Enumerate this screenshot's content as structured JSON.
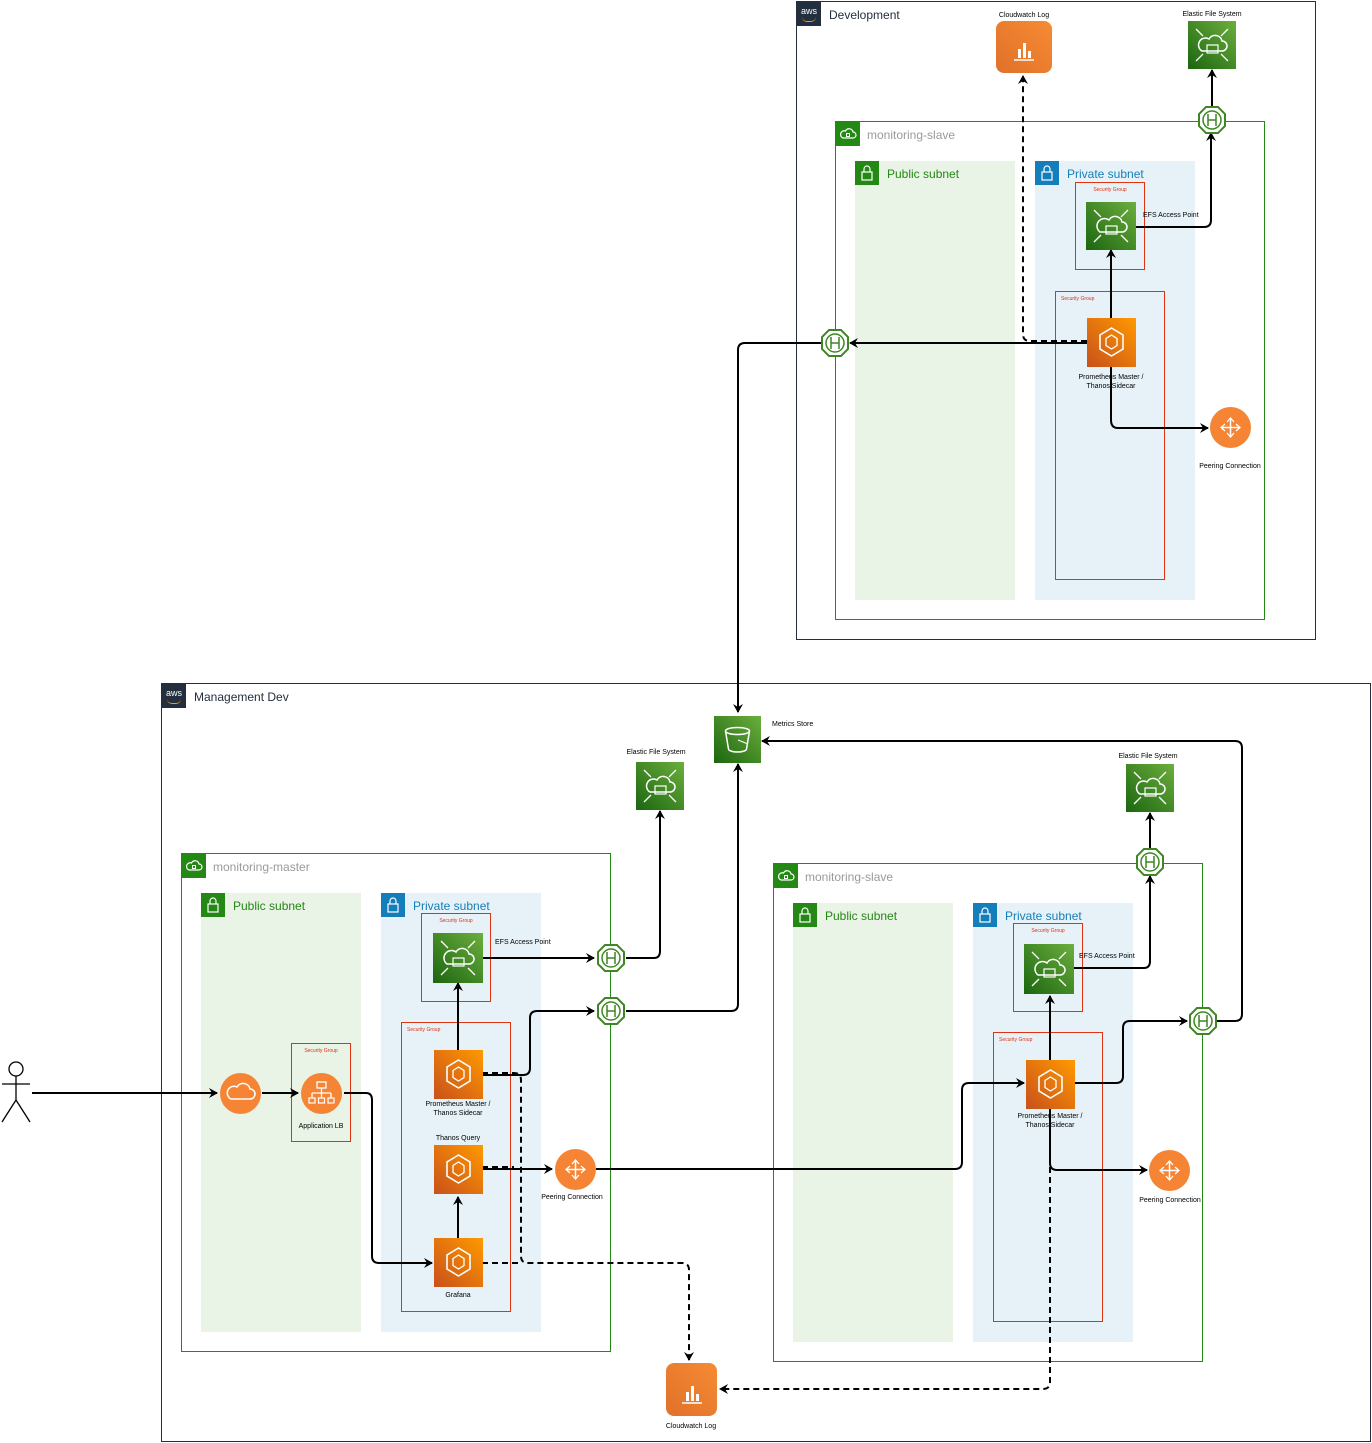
{
  "development": {
    "title": "Development",
    "cloudwatch_label": "Cloudwatch Log",
    "efs_label": "Elastic File System",
    "vpc": {
      "title": "monitoring-slave",
      "public_subnet": "Public subnet",
      "private_subnet": "Private subnet",
      "sg_efs": "Security Group",
      "efs_ap_label": "EFS Access Point",
      "sg_prom": "Security Group",
      "prom_label_1": "Prometheus Master /",
      "prom_label_2": "Thanos Sidecar",
      "peering_label": "Peering Connection"
    }
  },
  "management": {
    "title": "Management Dev",
    "metrics_store_label": "Metrics Store",
    "efs_master_label": "Elastic File System",
    "efs_slave_label": "Elastic File System",
    "cloudwatch_label": "Cloudwatch Log",
    "master_vpc": {
      "title": "monitoring-master",
      "public_subnet": "Public subnet",
      "private_subnet": "Private subnet",
      "sg_alb": "Security Group",
      "alb_label": "Application LB",
      "sg_efs": "Security Group",
      "efs_ap_label": "EFS Access Point",
      "sg_prom": "Security Group",
      "prom_label_1": "Prometheus Master /",
      "prom_label_2": "Thanos Sidecar",
      "thanos_query_label": "Thanos Query",
      "grafana_label": "Grafana",
      "peering_label": "Peering Connection"
    },
    "slave_vpc": {
      "title": "monitoring-slave",
      "public_subnet": "Public subnet",
      "private_subnet": "Private subnet",
      "sg_efs": "Security Group",
      "efs_ap_label": "EFS Access Point",
      "sg_prom": "Security Group",
      "prom_label_1": "Prometheus Master /",
      "prom_label_2": "Thanos Sidecar",
      "peering_label": "Peering Connection"
    }
  },
  "logo_text": "aws",
  "colors": {
    "aws_dark": "#232f3e",
    "vpc_green": "#248814",
    "private_blue": "#147eba",
    "security_red": "#df3312",
    "compute_orange": "#ed7100",
    "storage_green": "#3f8624"
  }
}
